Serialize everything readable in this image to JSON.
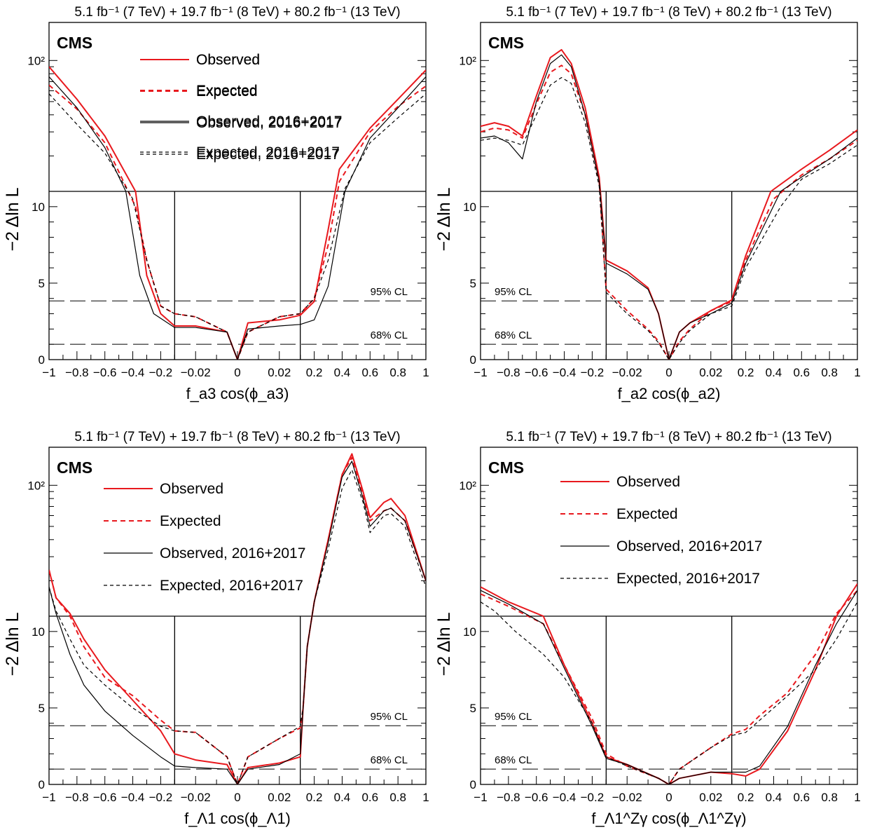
{
  "figure": {
    "lumi_label": "5.1 fb⁻¹ (7 TeV) + 19.7 fb⁻¹ (8 TeV) + 80.2 fb⁻¹ (13 TeV)",
    "experiment": "CMS",
    "ylabel": "−2 Δln L",
    "cl_labels": [
      "95% CL",
      "68% CL"
    ],
    "legend": [
      "Observed",
      "Expected",
      "Observed, 2016+2017",
      "Expected, 2016+2017"
    ],
    "colors": {
      "red": "#e8191e",
      "black": "#000000"
    }
  },
  "chart_data": [
    {
      "type": "line",
      "panel": "fa3",
      "xlabel": "f_a3 cos(ϕ_a3)",
      "yscale": "linear below 11, log above 11",
      "ylim": [
        0,
        190
      ],
      "xlim": [
        -1,
        1
      ],
      "x_ticks": [
        "−1",
        "−0.8",
        "−0.6",
        "−0.4",
        "−0.2",
        "−0.02",
        "0",
        "0.02",
        "0.2",
        "0.4",
        "0.6",
        "0.8",
        "1"
      ],
      "y_ticks": [
        "0",
        "5",
        "10",
        "10²"
      ],
      "cl_lines": [
        3.84,
        1.0
      ],
      "series": [
        {
          "name": "Observed",
          "style": "red-solid",
          "x": [
            -1,
            -0.8,
            -0.6,
            -0.38,
            -0.3,
            -0.2,
            -0.1,
            -0.02,
            -0.005,
            0,
            0.005,
            0.02,
            0.1,
            0.2,
            0.3,
            0.38,
            0.6,
            0.8,
            1
          ],
          "y": [
            90,
            52,
            28,
            11,
            5.5,
            3.0,
            2.2,
            2.2,
            1.8,
            0,
            2.4,
            2.6,
            2.9,
            3.8,
            8.5,
            16,
            32,
            52,
            85
          ]
        },
        {
          "name": "Expected",
          "style": "red-dashed",
          "x": [
            -1,
            -0.8,
            -0.6,
            -0.38,
            -0.3,
            -0.2,
            -0.1,
            -0.02,
            -0.005,
            0,
            0.005,
            0.02,
            0.1,
            0.2,
            0.3,
            0.38,
            0.6,
            0.8,
            1
          ],
          "y": [
            66,
            44,
            25,
            10,
            6.5,
            3.5,
            3.0,
            2.8,
            1.8,
            0,
            1.8,
            2.8,
            3.0,
            4.0,
            7.5,
            13,
            30,
            46,
            65
          ]
        },
        {
          "name": "Observed, 2016+2017",
          "style": "black-solid",
          "x": [
            -1,
            -0.8,
            -0.6,
            -0.45,
            -0.35,
            -0.25,
            -0.1,
            -0.02,
            -0.005,
            0,
            0.005,
            0.02,
            0.1,
            0.2,
            0.3,
            0.42,
            0.6,
            0.8,
            1
          ],
          "y": [
            76,
            45,
            23,
            11,
            5.5,
            3.0,
            2.1,
            2.1,
            1.8,
            0,
            2.0,
            2.2,
            2.3,
            2.6,
            4.8,
            11,
            27,
            45,
            76
          ]
        },
        {
          "name": "Expected, 2016+2017",
          "style": "black-dashed",
          "x": [
            -1,
            -0.8,
            -0.6,
            -0.4,
            -0.3,
            -0.2,
            -0.1,
            -0.02,
            -0.005,
            0,
            0.005,
            0.02,
            0.1,
            0.2,
            0.3,
            0.42,
            0.6,
            0.8,
            1
          ],
          "y": [
            57,
            34,
            21,
            10.5,
            6.5,
            3.5,
            3.0,
            2.8,
            1.8,
            0,
            1.8,
            2.8,
            3.0,
            4.0,
            6.5,
            11.5,
            25,
            38,
            57
          ]
        }
      ]
    },
    {
      "type": "line",
      "panel": "fa2",
      "xlabel": "f_a2 cos(ϕ_a2)",
      "yscale": "linear below 11, log above 11",
      "ylim": [
        0,
        190
      ],
      "xlim": [
        -1,
        1
      ],
      "x_ticks": [
        "−1",
        "−0.8",
        "−0.6",
        "−0.4",
        "−0.2",
        "−0.02",
        "0",
        "0.02",
        "0.2",
        "0.4",
        "0.6",
        "0.8",
        "1"
      ],
      "y_ticks": [
        "0",
        "5",
        "10",
        "10²"
      ],
      "cl_lines": [
        3.84,
        1.0
      ],
      "series": [
        {
          "name": "Observed",
          "style": "red-solid",
          "x": [
            -1,
            -0.9,
            -0.8,
            -0.7,
            -0.6,
            -0.5,
            -0.42,
            -0.35,
            -0.25,
            -0.15,
            -0.1,
            -0.02,
            -0.01,
            -0.005,
            0,
            0.005,
            0.01,
            0.02,
            0.1,
            0.2,
            0.38,
            0.6,
            0.8,
            1
          ],
          "y": [
            33,
            35,
            33,
            28,
            55,
            105,
            120,
            95,
            45,
            14,
            6.5,
            5.8,
            4.7,
            3.0,
            0,
            1.8,
            2.4,
            3.2,
            3.9,
            6.8,
            11,
            16,
            22,
            31
          ]
        },
        {
          "name": "Expected",
          "style": "red-dashed",
          "x": [
            -1,
            -0.9,
            -0.8,
            -0.7,
            -0.6,
            -0.5,
            -0.42,
            -0.35,
            -0.25,
            -0.15,
            -0.1,
            -0.02,
            -0.01,
            -0.005,
            0,
            0.005,
            0.01,
            0.02,
            0.1,
            0.2,
            0.4,
            0.6,
            0.8,
            1
          ],
          "y": [
            30,
            32,
            31,
            27,
            48,
            82,
            92,
            80,
            40,
            13,
            4.6,
            3.2,
            2.0,
            1.2,
            0,
            1.2,
            2.0,
            3.2,
            3.8,
            6.5,
            10.5,
            14.5,
            19,
            26
          ]
        },
        {
          "name": "Observed, 2016+2017",
          "style": "black-solid",
          "x": [
            -1,
            -0.9,
            -0.8,
            -0.7,
            -0.6,
            -0.5,
            -0.42,
            -0.35,
            -0.25,
            -0.15,
            -0.1,
            -0.02,
            -0.01,
            -0.005,
            0,
            0.005,
            0.01,
            0.02,
            0.1,
            0.2,
            0.45,
            0.6,
            0.8,
            1
          ],
          "y": [
            27,
            28,
            25,
            19,
            50,
            95,
            110,
            90,
            40,
            13,
            6.3,
            5.6,
            4.6,
            3.0,
            0,
            1.8,
            2.4,
            3.0,
            3.7,
            6.3,
            11,
            14,
            19,
            27
          ]
        },
        {
          "name": "Expected, 2016+2017",
          "style": "black-dashed",
          "x": [
            -1,
            -0.9,
            -0.8,
            -0.7,
            -0.6,
            -0.5,
            -0.42,
            -0.35,
            -0.25,
            -0.15,
            -0.1,
            -0.02,
            -0.01,
            -0.005,
            0,
            0.005,
            0.01,
            0.02,
            0.1,
            0.2,
            0.45,
            0.6,
            0.8,
            1
          ],
          "y": [
            26,
            27,
            26,
            24,
            40,
            66,
            75,
            68,
            35,
            12,
            4.4,
            3.0,
            1.9,
            1.1,
            0,
            1.1,
            1.9,
            3.0,
            3.5,
            6.0,
            10,
            13.5,
            17.5,
            24
          ]
        }
      ]
    },
    {
      "type": "line",
      "panel": "fL1",
      "xlabel": "f_Λ1 cos(ϕ_Λ1)",
      "yscale": "linear below 11, log above 11",
      "ylim": [
        0,
        190
      ],
      "xlim": [
        -1,
        1
      ],
      "x_ticks": [
        "−1",
        "−0.8",
        "−0.6",
        "−0.4",
        "−0.2",
        "−0.02",
        "0",
        "0.02",
        "0.2",
        "0.4",
        "0.6",
        "0.8",
        "1"
      ],
      "y_ticks": [
        "0",
        "5",
        "10",
        "10²"
      ],
      "cl_lines": [
        3.84,
        1.0
      ],
      "series": [
        {
          "name": "Observed",
          "style": "red-solid",
          "x": [
            -1,
            -0.95,
            -0.85,
            -0.75,
            -0.6,
            -0.4,
            -0.2,
            -0.1,
            -0.02,
            -0.005,
            0,
            0.005,
            0.02,
            0.1,
            0.12,
            0.15,
            0.2,
            0.3,
            0.4,
            0.47,
            0.55,
            0.6,
            0.7,
            0.75,
            0.85,
            1
          ],
          "y": [
            24,
            15,
            11.5,
            9.5,
            7.5,
            5.5,
            3.5,
            2.0,
            1.6,
            1.3,
            0,
            1.1,
            1.4,
            1.8,
            5,
            9,
            14,
            40,
            120,
            170,
            90,
            58,
            75,
            80,
            60,
            20
          ]
        },
        {
          "name": "Expected",
          "style": "red-dashed",
          "x": [
            -1,
            -0.95,
            -0.85,
            -0.75,
            -0.6,
            -0.4,
            -0.2,
            -0.1,
            -0.02,
            -0.005,
            0,
            0.005,
            0.02,
            0.1,
            0.12,
            0.15,
            0.2,
            0.3,
            0.4,
            0.47,
            0.55,
            0.6,
            0.7,
            0.75,
            0.85,
            1
          ],
          "y": [
            24,
            15,
            11.0,
            9.0,
            7.0,
            5.8,
            4.2,
            3.5,
            3.4,
            1.8,
            0,
            1.8,
            3.0,
            3.7,
            5,
            9,
            14,
            40,
            120,
            160,
            85,
            55,
            65,
            68,
            55,
            20
          ]
        },
        {
          "name": "Observed, 2016+2017",
          "style": "black-solid",
          "x": [
            -1,
            -0.95,
            -0.85,
            -0.75,
            -0.6,
            -0.4,
            -0.2,
            -0.1,
            -0.02,
            -0.005,
            0,
            0.005,
            0.02,
            0.1,
            0.12,
            0.15,
            0.2,
            0.3,
            0.4,
            0.47,
            0.55,
            0.6,
            0.7,
            0.75,
            0.85,
            1
          ],
          "y": [
            18,
            11.5,
            8.5,
            6.5,
            4.8,
            3.2,
            1.8,
            1.2,
            1.1,
            1.0,
            0,
            1.0,
            1.3,
            2.0,
            5,
            9,
            14,
            38,
            115,
            150,
            80,
            50,
            65,
            68,
            55,
            20
          ]
        },
        {
          "name": "Expected, 2016+2017",
          "style": "black-dashed",
          "x": [
            -1,
            -0.95,
            -0.85,
            -0.75,
            -0.6,
            -0.4,
            -0.2,
            -0.1,
            -0.02,
            -0.005,
            0,
            0.005,
            0.02,
            0.1,
            0.12,
            0.15,
            0.2,
            0.3,
            0.4,
            0.47,
            0.55,
            0.6,
            0.7,
            0.75,
            0.85,
            1
          ],
          "y": [
            18,
            12,
            9.5,
            7.8,
            6.5,
            5.0,
            3.8,
            3.5,
            3.4,
            1.8,
            0,
            1.8,
            3.0,
            3.8,
            5,
            9,
            14,
            34,
            95,
            130,
            75,
            45,
            60,
            62,
            50,
            18
          ]
        }
      ]
    },
    {
      "type": "line",
      "panel": "fL1Zg",
      "xlabel": "f_Λ1^Zγ cos(ϕ_Λ1^Zγ)",
      "yscale": "linear below 11, log above 11",
      "ylim": [
        0,
        190
      ],
      "xlim": [
        -1,
        1
      ],
      "x_ticks": [
        "−1",
        "−0.8",
        "−0.6",
        "−0.4",
        "−0.2",
        "−0.02",
        "0",
        "0.02",
        "0.2",
        "0.4",
        "0.6",
        "0.8",
        "1"
      ],
      "y_ticks": [
        "0",
        "5",
        "10",
        "10²"
      ],
      "cl_lines": [
        3.84,
        1.0
      ],
      "series": [
        {
          "name": "Observed",
          "style": "red-solid",
          "x": [
            -1,
            -0.8,
            -0.55,
            -0.4,
            -0.2,
            -0.1,
            -0.02,
            -0.005,
            0,
            0.005,
            0.02,
            0.1,
            0.2,
            0.3,
            0.5,
            0.7,
            0.85,
            1
          ],
          "y": [
            18,
            14,
            11,
            7.8,
            4.0,
            1.8,
            1.3,
            0.4,
            0,
            0.4,
            0.8,
            0.7,
            0.55,
            1.0,
            3.5,
            7.5,
            11,
            19
          ]
        },
        {
          "name": "Expected",
          "style": "red-dashed",
          "x": [
            -1,
            -0.8,
            -0.55,
            -0.4,
            -0.2,
            -0.1,
            -0.02,
            -0.005,
            0,
            0.005,
            0.02,
            0.1,
            0.2,
            0.3,
            0.5,
            0.7,
            0.85,
            1
          ],
          "y": [
            16,
            13,
            10.5,
            7.8,
            4.3,
            2.0,
            1.2,
            0.4,
            0,
            1.0,
            2.4,
            3.3,
            3.6,
            4.5,
            6.0,
            8.5,
            11.5,
            17
          ]
        },
        {
          "name": "Observed, 2016+2017",
          "style": "black-solid",
          "x": [
            -1,
            -0.8,
            -0.55,
            -0.4,
            -0.2,
            -0.1,
            -0.02,
            -0.005,
            0,
            0.005,
            0.02,
            0.1,
            0.2,
            0.3,
            0.5,
            0.7,
            0.85,
            1
          ],
          "y": [
            17,
            13.5,
            10.5,
            7.6,
            3.8,
            1.7,
            1.3,
            0.4,
            0,
            0.4,
            0.8,
            0.8,
            0.8,
            1.2,
            3.8,
            7.8,
            10.5,
            17
          ]
        },
        {
          "name": "Expected, 2016+2017",
          "style": "black-dashed",
          "x": [
            -1,
            -0.9,
            -0.75,
            -0.55,
            -0.4,
            -0.2,
            -0.1,
            -0.02,
            -0.005,
            0,
            0.005,
            0.02,
            0.1,
            0.2,
            0.3,
            0.5,
            0.7,
            0.85,
            1
          ],
          "y": [
            14,
            12,
            10,
            8.5,
            7.0,
            4.0,
            1.8,
            1.2,
            0.4,
            0,
            1.0,
            2.4,
            3.2,
            3.4,
            4.2,
            5.8,
            7.5,
            9.5,
            14
          ]
        }
      ]
    }
  ]
}
